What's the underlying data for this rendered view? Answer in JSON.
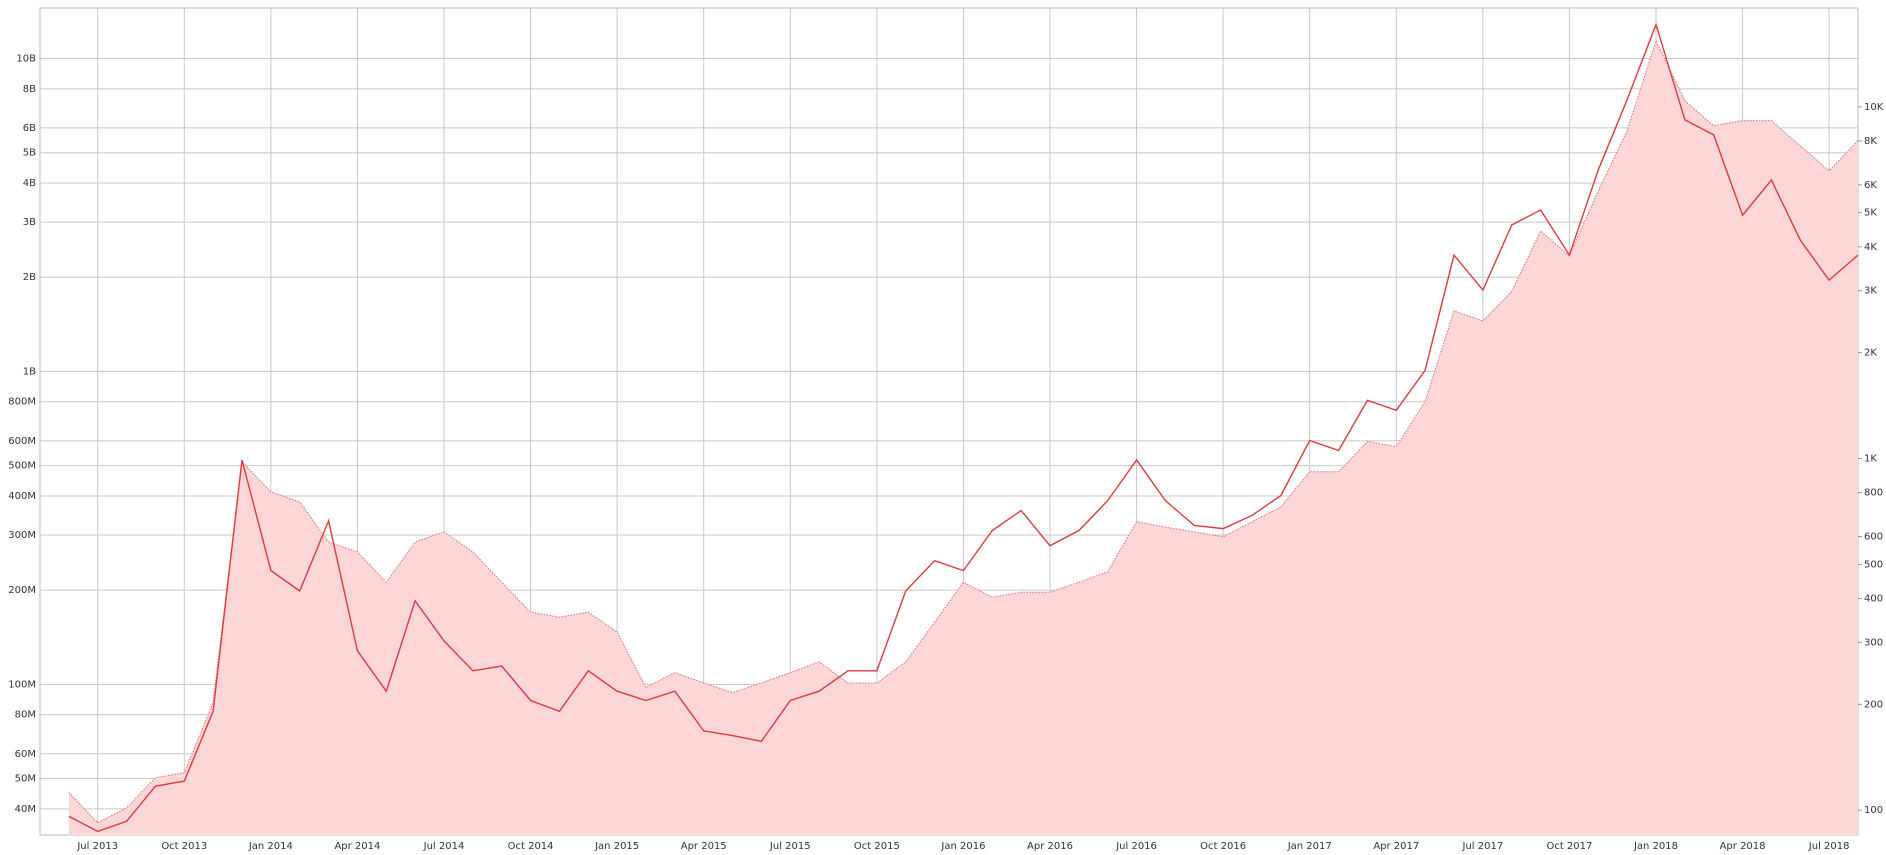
{
  "chart_data": {
    "type": "line",
    "grid": true,
    "y2_log": true,
    "y_log": true,
    "x": [
      "Jun 2013",
      "Jul 2013",
      "Aug 2013",
      "Sep 2013",
      "Oct 2013",
      "Nov 2013",
      "Dec 2013",
      "Jan 2014",
      "Feb 2014",
      "Mar 2014",
      "Apr 2014",
      "May 2014",
      "Jun 2014",
      "Jul 2014",
      "Aug 2014",
      "Sep 2014",
      "Oct 2014",
      "Nov 2014",
      "Dec 2014",
      "Jan 2015",
      "Feb 2015",
      "Mar 2015",
      "Apr 2015",
      "May 2015",
      "Jun 2015",
      "Jul 2015",
      "Aug 2015",
      "Sep 2015",
      "Oct 2015",
      "Nov 2015",
      "Dec 2015",
      "Jan 2016",
      "Feb 2016",
      "Mar 2016",
      "Apr 2016",
      "May 2016",
      "Jun 2016",
      "Jul 2016",
      "Aug 2016",
      "Sep 2016",
      "Oct 2016",
      "Nov 2016",
      "Dec 2016",
      "Jan 2017",
      "Feb 2017",
      "Mar 2017",
      "Apr 2017",
      "May 2017",
      "Jun 2017",
      "Jul 2017",
      "Aug 2017",
      "Sep 2017",
      "Oct 2017",
      "Nov 2017",
      "Dec 2017",
      "Jan 2018",
      "Feb 2018",
      "Mar 2018",
      "Apr 2018",
      "May 2018",
      "Jun 2018",
      "Jul 2018",
      "Aug 2018"
    ],
    "xlim": [
      "May 2013",
      "Aug 2018"
    ],
    "xticks": [
      "Jul 2013",
      "Oct 2013",
      "Jan 2014",
      "Apr 2014",
      "Jul 2014",
      "Oct 2014",
      "Jan 2015",
      "Apr 2015",
      "Jul 2015",
      "Oct 2015",
      "Jan 2016",
      "Apr 2016",
      "Jul 2016",
      "Oct 2016",
      "Jan 2017",
      "Apr 2017",
      "Jul 2017",
      "Oct 2017",
      "Jan 2018",
      "Apr 2018",
      "Jul 2018"
    ],
    "ylim": [
      33000000,
      14500000000
    ],
    "yticks": [
      {
        "value": 40000000,
        "label": "40M"
      },
      {
        "value": 50000000,
        "label": "50M"
      },
      {
        "value": 60000000,
        "label": "60M"
      },
      {
        "value": 80000000,
        "label": "80M"
      },
      {
        "value": 100000000,
        "label": "100M"
      },
      {
        "value": 200000000,
        "label": "200M"
      },
      {
        "value": 300000000,
        "label": "300M"
      },
      {
        "value": 400000000,
        "label": "400M"
      },
      {
        "value": 500000000,
        "label": "500M"
      },
      {
        "value": 600000000,
        "label": "600M"
      },
      {
        "value": 800000000,
        "label": "800M"
      },
      {
        "value": 1000000000,
        "label": "1B"
      },
      {
        "value": 2000000000,
        "label": "2B"
      },
      {
        "value": 3000000000,
        "label": "3B"
      },
      {
        "value": 4000000000,
        "label": "4B"
      },
      {
        "value": 5000000000,
        "label": "5B"
      },
      {
        "value": 6000000000,
        "label": "6B"
      },
      {
        "value": 8000000000,
        "label": "8B"
      },
      {
        "value": 10000000000,
        "label": "10B"
      }
    ],
    "y2lim": [
      85,
      19100
    ],
    "y2ticks": [
      100,
      200,
      300,
      400,
      500,
      600,
      800,
      {
        "value": 1000,
        "label": "1K"
      },
      {
        "value": 2000,
        "label": "2K"
      },
      {
        "value": 3000,
        "label": "3K"
      },
      {
        "value": 4000,
        "label": "4K"
      },
      {
        "value": 5000,
        "label": "5K"
      },
      {
        "value": 6000,
        "label": "6K"
      },
      {
        "value": 8000,
        "label": "8K"
      },
      {
        "value": 10000,
        "label": "10K"
      }
    ],
    "series": [
      {
        "color": "#e03a3e",
        "axis": "y2",
        "style": "solid",
        "values": [
          96,
          87,
          93,
          117,
          121,
          191,
          990,
          480,
          420,
          665,
          284,
          218,
          394,
          303,
          249,
          257,
          205,
          191,
          249,
          218,
          205,
          218,
          168,
          163,
          157,
          205,
          218,
          249,
          249,
          420,
          512,
          480,
          624,
          711,
          565,
          624,
          759,
          990,
          759,
          645,
          632,
          689,
          785,
          1125,
          1054,
          1463,
          1371,
          1782,
          3787,
          3012,
          4613,
          5090,
          3787,
          6620,
          10470,
          17130,
          9180,
          8320,
          4920,
          6190,
          4180,
          3215,
          3787
        ]
      },
      {
        "color": "#e36a6e",
        "fill": "#fdd6d8",
        "axis": "y",
        "style": "dotted",
        "values": [
          45100000,
          36100000,
          40300000,
          50300000,
          52200000,
          87500000,
          515000000,
          412000000,
          383000000,
          285000000,
          265000000,
          212000000,
          285000000,
          307000000,
          265000000,
          212000000,
          170000000,
          164000000,
          170000000,
          147000000,
          97700000,
          109000000,
          101000000,
          94200000,
          101000000,
          109000000,
          118000000,
          101000000,
          101000000,
          118000000,
          158000000,
          212000000,
          190000000,
          197000000,
          197000000,
          212000000,
          229000000,
          331000000,
          318000000,
          307000000,
          296000000,
          331000000,
          369000000,
          478000000,
          478000000,
          597000000,
          575000000,
          802000000,
          1560000000,
          1450000000,
          1800000000,
          2810000000,
          2340000000,
          3780000000,
          5880000000,
          11400000000,
          7330000000,
          6100000000,
          6330000000,
          6330000000,
          5260000000,
          4380000000,
          5460000000
        ]
      }
    ]
  }
}
